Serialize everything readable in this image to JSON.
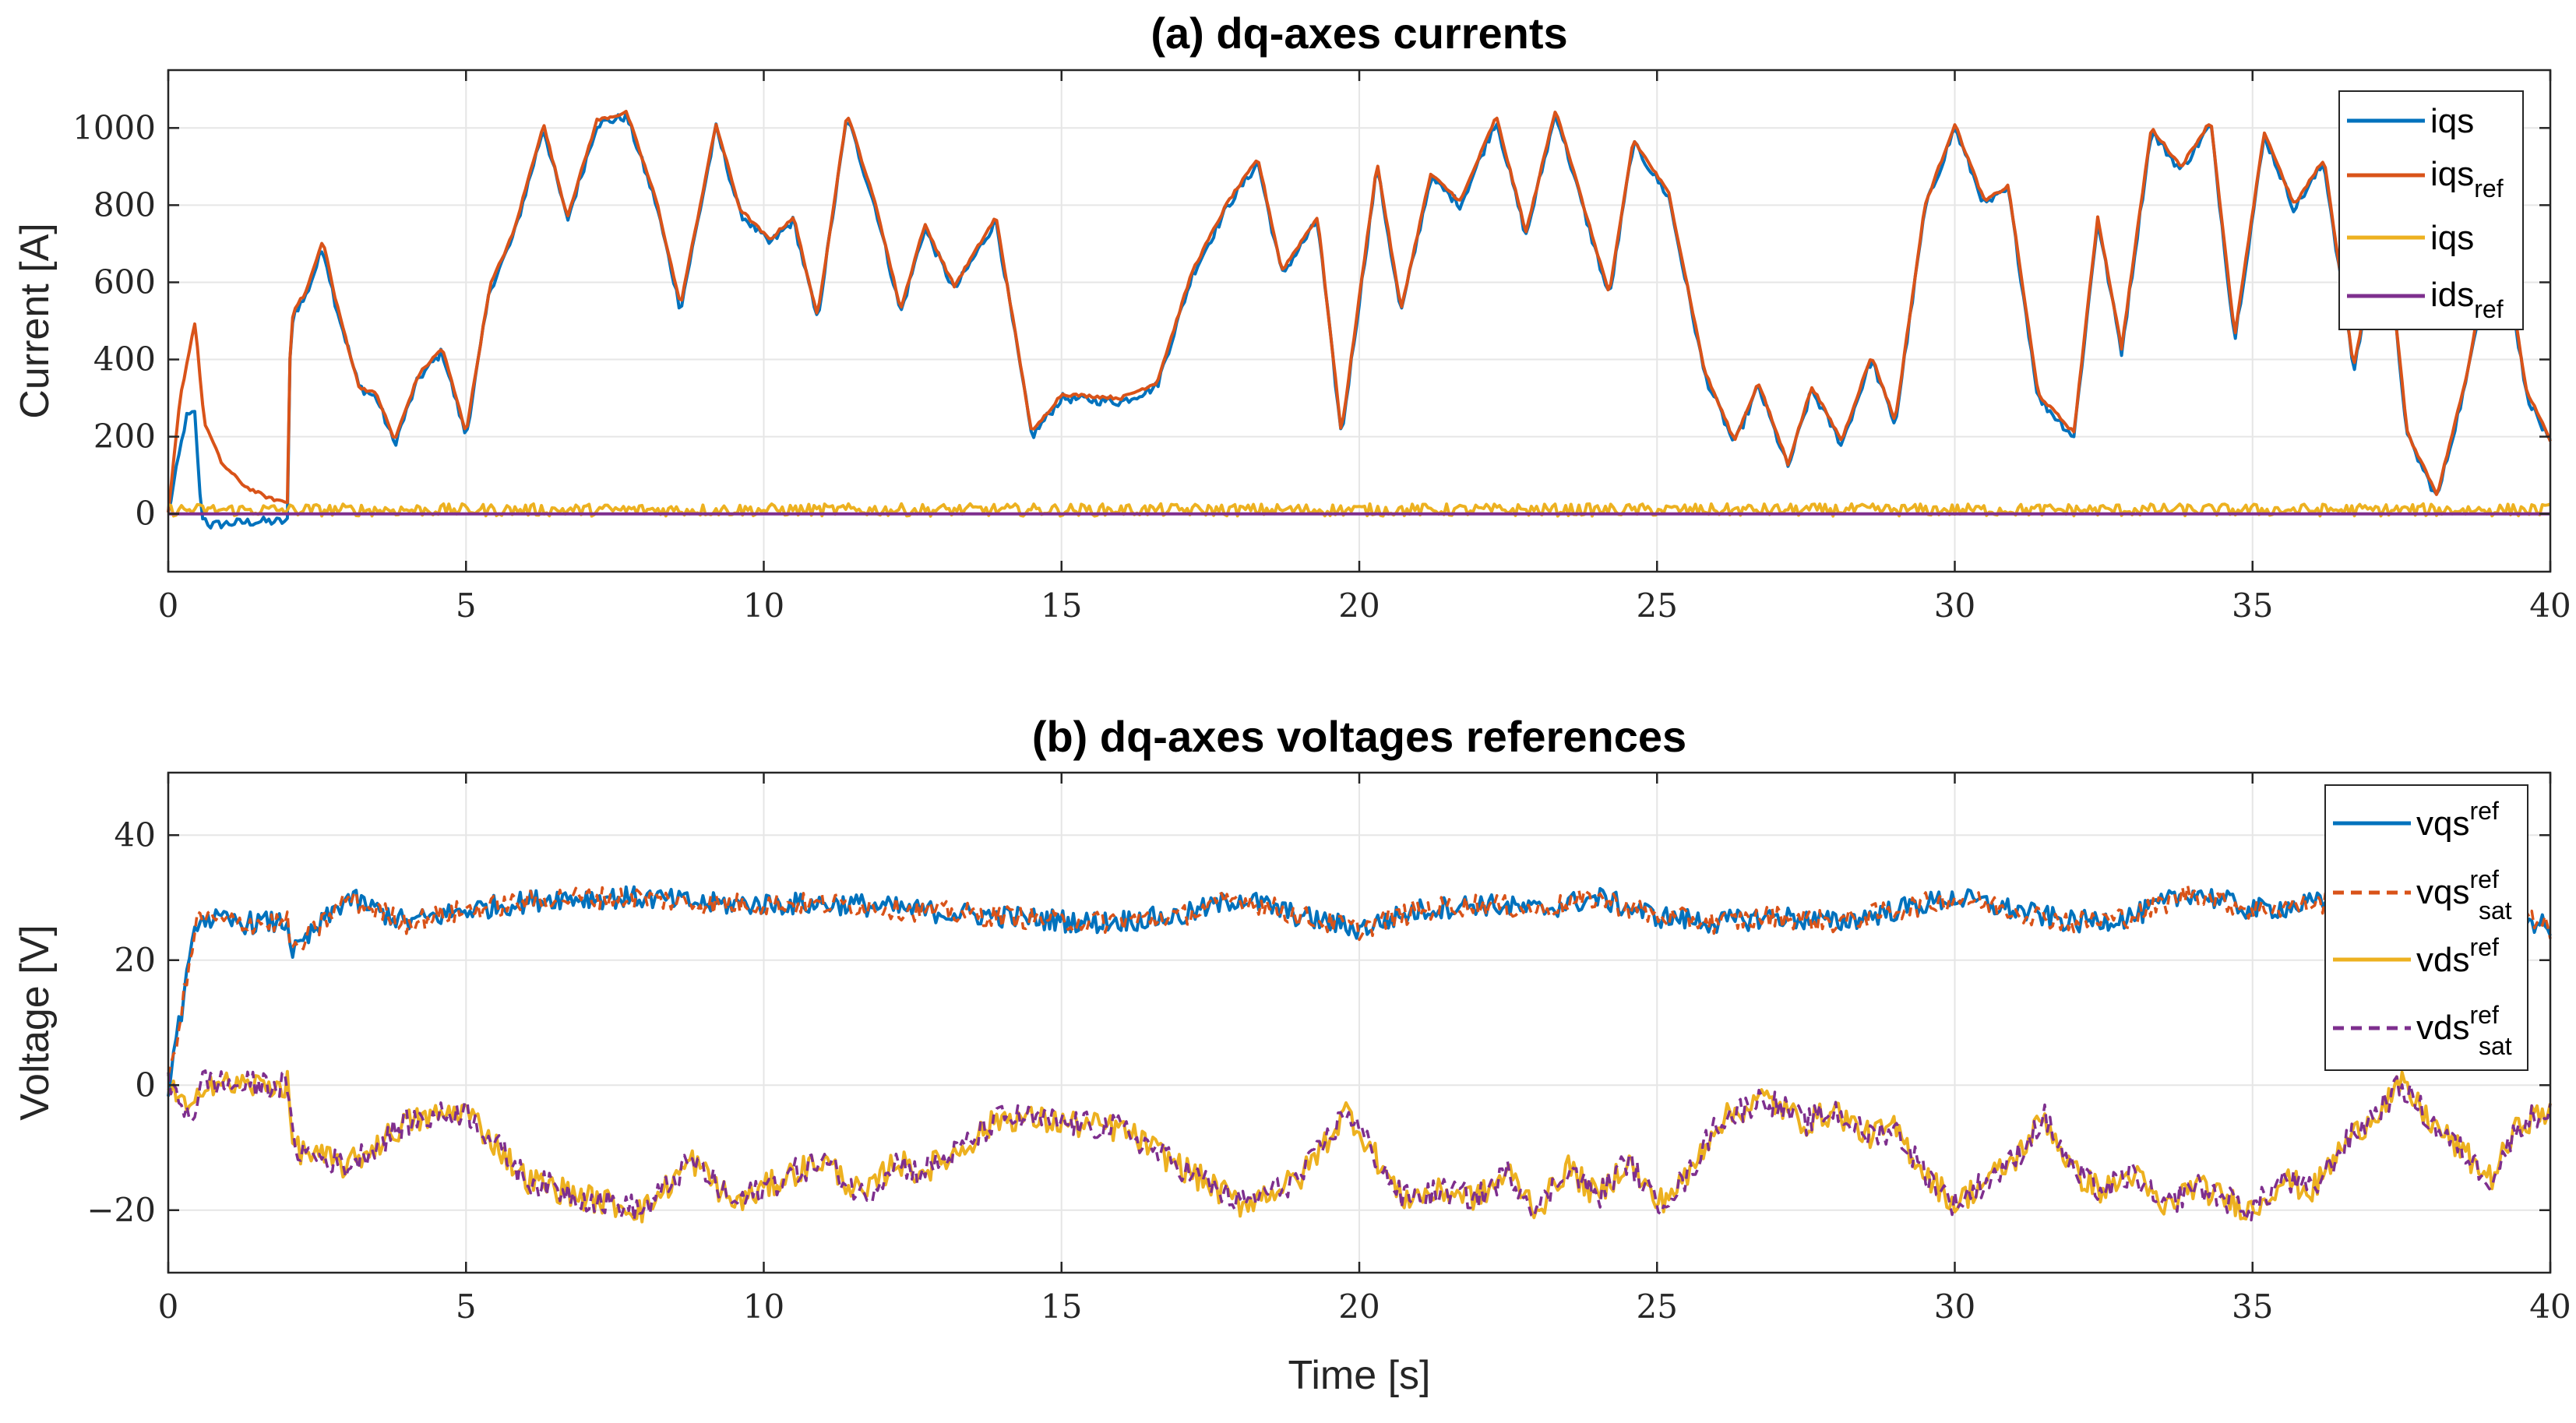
{
  "chart_data": [
    {
      "type": "line",
      "title": "(a) dq-axes currents",
      "xlabel": "",
      "ylabel": "Current [A]",
      "xlim": [
        0,
        40
      ],
      "ylim": [
        -150,
        1150
      ],
      "xticks": [
        0,
        5,
        10,
        15,
        20,
        25,
        30,
        35,
        40
      ],
      "yticks": [
        0,
        200,
        400,
        600,
        800,
        1000
      ],
      "x_tick_labels": [
        "0",
        "5",
        "10",
        "15",
        "20",
        "25",
        "30",
        "35",
        "40"
      ],
      "y_tick_labels": [
        "0",
        "200",
        "400",
        "600",
        "800",
        "1000"
      ],
      "grid": true,
      "legend_position": "top-right",
      "series": [
        {
          "name": "iqs",
          "legend_main": "iqs",
          "legend_sub": "",
          "legend_sup": "",
          "color": "#0072BD",
          "style": "solid",
          "noise": 12,
          "x": [
            0,
            0.3,
            0.45,
            0.55,
            0.7,
            1.0,
            1.5,
            2.0,
            2.05,
            2.1,
            2.3,
            2.6,
            2.8,
            3.2,
            3.5,
            3.8,
            4.2,
            4.6,
            5.0,
            5.4,
            5.8,
            6.3,
            6.7,
            7.2,
            7.7,
            8.2,
            8.6,
            9.2,
            9.6,
            10.1,
            10.5,
            10.9,
            11.4,
            11.9,
            12.3,
            12.7,
            13.2,
            13.9,
            14.5,
            15.0,
            16.0,
            16.6,
            17.2,
            17.8,
            18.3,
            18.7,
            19.3,
            19.7,
            20.3,
            20.7,
            21.2,
            21.7,
            22.3,
            22.8,
            23.3,
            23.8,
            24.2,
            24.6,
            25.2,
            25.8,
            26.3,
            26.7,
            27.2,
            27.6,
            28.1,
            28.6,
            29.0,
            29.5,
            30.0,
            30.5,
            30.9,
            31.4,
            32.0,
            32.4,
            32.8,
            33.3,
            33.8,
            34.3,
            34.7,
            35.2,
            35.7,
            36.2,
            36.7,
            37.2,
            37.6,
            38.1,
            38.6,
            39.1,
            39.6,
            40.0
          ],
          "y": [
            0,
            250,
            260,
            0,
            -30,
            -25,
            -20,
            -20,
            450,
            520,
            560,
            690,
            550,
            330,
            300,
            180,
            350,
            420,
            200,
            580,
            720,
            1000,
            760,
            1010,
            1030,
            800,
            530,
            1000,
            780,
            700,
            760,
            500,
            1030,
            780,
            520,
            740,
            580,
            760,
            200,
            300,
            290,
            330,
            620,
            800,
            910,
            620,
            760,
            200,
            900,
            520,
            870,
            800,
            1020,
            720,
            1040,
            770,
            560,
            960,
            820,
            360,
            180,
            330,
            120,
            320,
            180,
            400,
            230,
            790,
            1000,
            800,
            840,
            300,
            200,
            760,
            420,
            990,
            890,
            1010,
            450,
            980,
            790,
            910,
            370,
            790,
            200,
            40,
            350,
            800,
            310,
            180
          ]
        },
        {
          "name": "iqs_ref",
          "legend_main": "iqs",
          "legend_sub": "ref",
          "legend_sup": "",
          "color": "#D95319",
          "style": "solid",
          "noise": 4,
          "x": [
            0,
            0.2,
            0.45,
            0.6,
            0.9,
            1.3,
            1.7,
            2.0,
            2.05,
            2.1,
            2.3,
            2.6,
            2.8,
            3.2,
            3.5,
            3.8,
            4.2,
            4.6,
            5.0,
            5.4,
            5.8,
            6.3,
            6.7,
            7.2,
            7.7,
            8.2,
            8.6,
            9.2,
            9.6,
            10.1,
            10.5,
            10.9,
            11.4,
            11.9,
            12.3,
            12.7,
            13.2,
            13.9,
            14.5,
            15.0,
            16.0,
            16.6,
            17.2,
            17.8,
            18.3,
            18.7,
            19.3,
            19.7,
            20.3,
            20.7,
            21.2,
            21.7,
            22.3,
            22.8,
            23.3,
            23.8,
            24.2,
            24.6,
            25.2,
            25.8,
            26.3,
            26.7,
            27.2,
            27.6,
            28.1,
            28.6,
            29.0,
            29.5,
            30.0,
            30.5,
            30.9,
            31.4,
            32.0,
            32.4,
            32.8,
            33.3,
            33.8,
            34.3,
            34.7,
            35.2,
            35.7,
            36.2,
            36.7,
            37.2,
            37.6,
            38.1,
            38.6,
            39.1,
            39.6,
            40.0
          ],
          "y": [
            0,
            300,
            500,
            240,
            130,
            70,
            40,
            30,
            450,
            530,
            570,
            710,
            560,
            330,
            310,
            190,
            360,
            430,
            210,
            590,
            730,
            1010,
            770,
            1020,
            1040,
            810,
            540,
            1010,
            790,
            710,
            770,
            510,
            1040,
            790,
            530,
            750,
            590,
            770,
            210,
            310,
            300,
            340,
            630,
            810,
            920,
            630,
            770,
            210,
            910,
            530,
            880,
            810,
            1030,
            730,
            1050,
            780,
            570,
            970,
            830,
            370,
            190,
            340,
            130,
            330,
            190,
            410,
            240,
            800,
            1010,
            810,
            850,
            310,
            210,
            770,
            430,
            1000,
            900,
            1020,
            460,
            990,
            800,
            920,
            380,
            800,
            210,
            50,
            360,
            810,
            320,
            190
          ]
        },
        {
          "name": "iqs_2",
          "legend_main": "iqs",
          "legend_sub": "",
          "legend_sup": "",
          "color": "#EDB120",
          "style": "solid",
          "noise": 16,
          "x": [
            0,
            40
          ],
          "y": [
            10,
            10
          ]
        },
        {
          "name": "ids_ref",
          "legend_main": "ids",
          "legend_sub": "ref",
          "legend_sup": "",
          "color": "#7E2F8E",
          "style": "solid",
          "noise": 0,
          "x": [
            0,
            40
          ],
          "y": [
            0,
            0
          ]
        }
      ]
    },
    {
      "type": "line",
      "title": "(b) dq-axes voltages references",
      "xlabel": "Time [s]",
      "ylabel": "Voltage [V]",
      "xlim": [
        0,
        40
      ],
      "ylim": [
        -30,
        50
      ],
      "xticks": [
        0,
        5,
        10,
        15,
        20,
        25,
        30,
        35,
        40
      ],
      "yticks": [
        -20,
        0,
        20,
        40
      ],
      "x_tick_labels": [
        "0",
        "5",
        "10",
        "15",
        "20",
        "25",
        "30",
        "35",
        "40"
      ],
      "y_tick_labels": [
        "−20",
        "0",
        "20",
        "40"
      ],
      "grid": true,
      "legend_position": "top-right",
      "series": [
        {
          "name": "vqs_ref",
          "legend_main": "vqs",
          "legend_sub": "",
          "legend_sup": "ref",
          "color": "#0072BD",
          "style": "solid",
          "noise": 1.8,
          "x": [
            0,
            0.5,
            1.0,
            2.0,
            2.1,
            3.0,
            4.0,
            5.0,
            6.5,
            8.0,
            9.0,
            10.0,
            11.5,
            12.5,
            14.0,
            15.5,
            17.0,
            18.0,
            19.0,
            20.0,
            21.0,
            22.0,
            23.0,
            24.0,
            25.0,
            26.0,
            27.0,
            28.0,
            29.0,
            30.0,
            31.0,
            32.0,
            33.0,
            34.0,
            35.0,
            36.0,
            37.0,
            38.0,
            39.0,
            40.0
          ],
          "y": [
            0,
            27,
            26,
            26,
            21,
            30,
            26,
            28,
            30,
            30,
            29,
            29,
            29,
            28,
            27,
            26,
            27,
            30,
            27,
            25,
            28,
            29,
            28,
            30,
            27,
            26,
            27,
            26,
            28,
            30,
            28,
            26,
            27,
            31,
            28,
            29,
            30,
            27,
            29,
            25
          ]
        },
        {
          "name": "vqs_sat",
          "legend_main": "vqs",
          "legend_sub": "sat",
          "legend_sup": "ref",
          "color": "#D95319",
          "style": "dashed",
          "noise": 1.8,
          "x": [
            0,
            0.5,
            1.0,
            2.0,
            2.1,
            3.0,
            4.0,
            5.0,
            6.5,
            8.0,
            9.0,
            10.0,
            11.5,
            12.5,
            14.0,
            15.5,
            17.0,
            18.0,
            19.0,
            20.0,
            21.0,
            22.0,
            23.0,
            24.0,
            25.0,
            26.0,
            27.0,
            28.0,
            29.0,
            30.0,
            31.0,
            32.0,
            33.0,
            34.0,
            35.0,
            36.0,
            37.0,
            38.0,
            39.0,
            40.0
          ],
          "y": [
            0,
            27,
            26,
            26,
            21,
            30,
            26,
            28,
            30,
            30,
            29,
            29,
            29,
            28,
            27,
            26,
            27,
            30,
            27,
            25,
            28,
            29,
            28,
            30,
            27,
            26,
            27,
            26,
            28,
            30,
            28,
            26,
            27,
            31,
            28,
            29,
            30,
            27,
            29,
            25
          ]
        },
        {
          "name": "vds_ref",
          "legend_main": "vds",
          "legend_sub": "",
          "legend_sup": "ref",
          "color": "#EDB120",
          "style": "solid",
          "noise": 2.2,
          "x": [
            0,
            0.4,
            0.6,
            1.0,
            2.0,
            2.1,
            3.0,
            4.0,
            5.0,
            6.0,
            7.0,
            8.0,
            8.8,
            9.5,
            10.5,
            11.0,
            11.7,
            12.2,
            12.6,
            13.2,
            14.0,
            15.0,
            16.0,
            17.0,
            18.0,
            19.0,
            19.8,
            20.7,
            21.5,
            22.0,
            22.5,
            23.0,
            23.5,
            24.0,
            24.5,
            25.0,
            25.5,
            26.0,
            26.8,
            27.5,
            28.0,
            28.5,
            29.0,
            29.5,
            30.0,
            31.0,
            31.5,
            32.0,
            32.5,
            33.0,
            33.5,
            34.0,
            34.5,
            35.0,
            35.5,
            36.0,
            36.5,
            37.5,
            38.0,
            39.0,
            39.5,
            40.0
          ],
          "y": [
            0,
            -5,
            1,
            0,
            0,
            -10,
            -13,
            -6,
            -4,
            -15,
            -18,
            -20,
            -12,
            -19,
            -14,
            -12,
            -18,
            -12,
            -14,
            -11,
            -5,
            -6,
            -7,
            -13,
            -19,
            -15,
            -4,
            -18,
            -17,
            -18,
            -14,
            -20,
            -13,
            -18,
            -12,
            -19,
            -15,
            -6,
            -2,
            -6,
            -4,
            -8,
            -7,
            -14,
            -19,
            -12,
            -5,
            -14,
            -17,
            -14,
            -20,
            -16,
            -18,
            -20,
            -15,
            -17,
            -10,
            0,
            -6,
            -15,
            -6,
            -4
          ]
        },
        {
          "name": "vds_sat",
          "legend_main": "vds",
          "legend_sub": "sat",
          "legend_sup": "ref",
          "color": "#7E2F8E",
          "style": "dashed",
          "noise": 2.2,
          "x": [
            0,
            0.4,
            0.6,
            1.0,
            2.0,
            2.1,
            3.0,
            4.0,
            5.0,
            6.0,
            7.0,
            8.0,
            8.8,
            9.5,
            10.5,
            11.0,
            11.7,
            12.2,
            12.6,
            13.2,
            14.0,
            15.0,
            16.0,
            17.0,
            18.0,
            19.0,
            19.8,
            20.7,
            21.5,
            22.0,
            22.5,
            23.0,
            23.5,
            24.0,
            24.5,
            25.0,
            25.5,
            26.0,
            26.8,
            27.5,
            28.0,
            28.5,
            29.0,
            29.5,
            30.0,
            31.0,
            31.5,
            32.0,
            32.5,
            33.0,
            33.5,
            34.0,
            34.5,
            35.0,
            35.5,
            36.0,
            36.5,
            37.5,
            38.0,
            39.0,
            39.5,
            40.0
          ],
          "y": [
            0,
            -5,
            1,
            0,
            0,
            -10,
            -13,
            -6,
            -4,
            -15,
            -18,
            -20,
            -12,
            -19,
            -14,
            -12,
            -18,
            -12,
            -14,
            -11,
            -5,
            -6,
            -7,
            -13,
            -19,
            -15,
            -4,
            -18,
            -17,
            -18,
            -14,
            -20,
            -13,
            -18,
            -12,
            -19,
            -15,
            -6,
            -2,
            -6,
            -4,
            -8,
            -7,
            -14,
            -19,
            -12,
            -5,
            -14,
            -17,
            -14,
            -20,
            -16,
            -18,
            -20,
            -15,
            -17,
            -10,
            0,
            -6,
            -15,
            -6,
            -4
          ]
        }
      ]
    }
  ]
}
